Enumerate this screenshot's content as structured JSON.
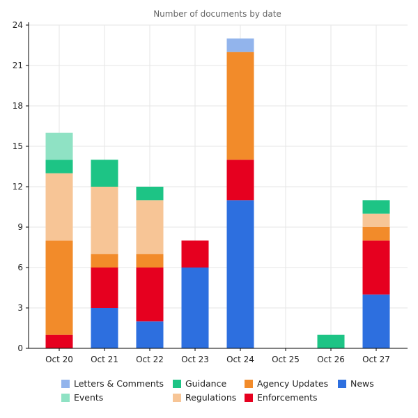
{
  "chart_data": {
    "type": "bar",
    "stacked": true,
    "title": "Number of documents by date",
    "xlabel": "",
    "ylabel": "",
    "ylim": [
      0,
      24
    ],
    "yticks": [
      0,
      3,
      6,
      9,
      12,
      15,
      18,
      21,
      24
    ],
    "grid": true,
    "legend_position": "bottom",
    "categories": [
      "Oct 20",
      "Oct 21",
      "Oct 22",
      "Oct 23",
      "Oct 24",
      "Oct 25",
      "Oct 26",
      "Oct 27"
    ],
    "series": [
      {
        "name": "News",
        "color": "#2d6fdf",
        "values": [
          0,
          3,
          2,
          6,
          11,
          0,
          0,
          4
        ]
      },
      {
        "name": "Enforcements",
        "color": "#e6001f",
        "values": [
          1,
          3,
          4,
          2,
          3,
          0,
          0,
          4
        ]
      },
      {
        "name": "Agency Updates",
        "color": "#f28b2a",
        "values": [
          7,
          1,
          1,
          0,
          8,
          0,
          0,
          1
        ]
      },
      {
        "name": "Regulations",
        "color": "#f7c596",
        "values": [
          5,
          5,
          4,
          0,
          0,
          0,
          0,
          1
        ]
      },
      {
        "name": "Guidance",
        "color": "#1dc485",
        "values": [
          1,
          2,
          1,
          0,
          0,
          0,
          1,
          1
        ]
      },
      {
        "name": "Events",
        "color": "#8fe2c4",
        "values": [
          2,
          0,
          0,
          0,
          0,
          0,
          0,
          0
        ]
      },
      {
        "name": "Letters & Comments",
        "color": "#92b4ec",
        "values": [
          0,
          0,
          0,
          0,
          1,
          0,
          0,
          0
        ]
      }
    ],
    "legend_order": [
      "Letters & Comments",
      "Guidance",
      "Agency Updates",
      "News",
      "Events",
      "Regulations",
      "Enforcements"
    ]
  }
}
